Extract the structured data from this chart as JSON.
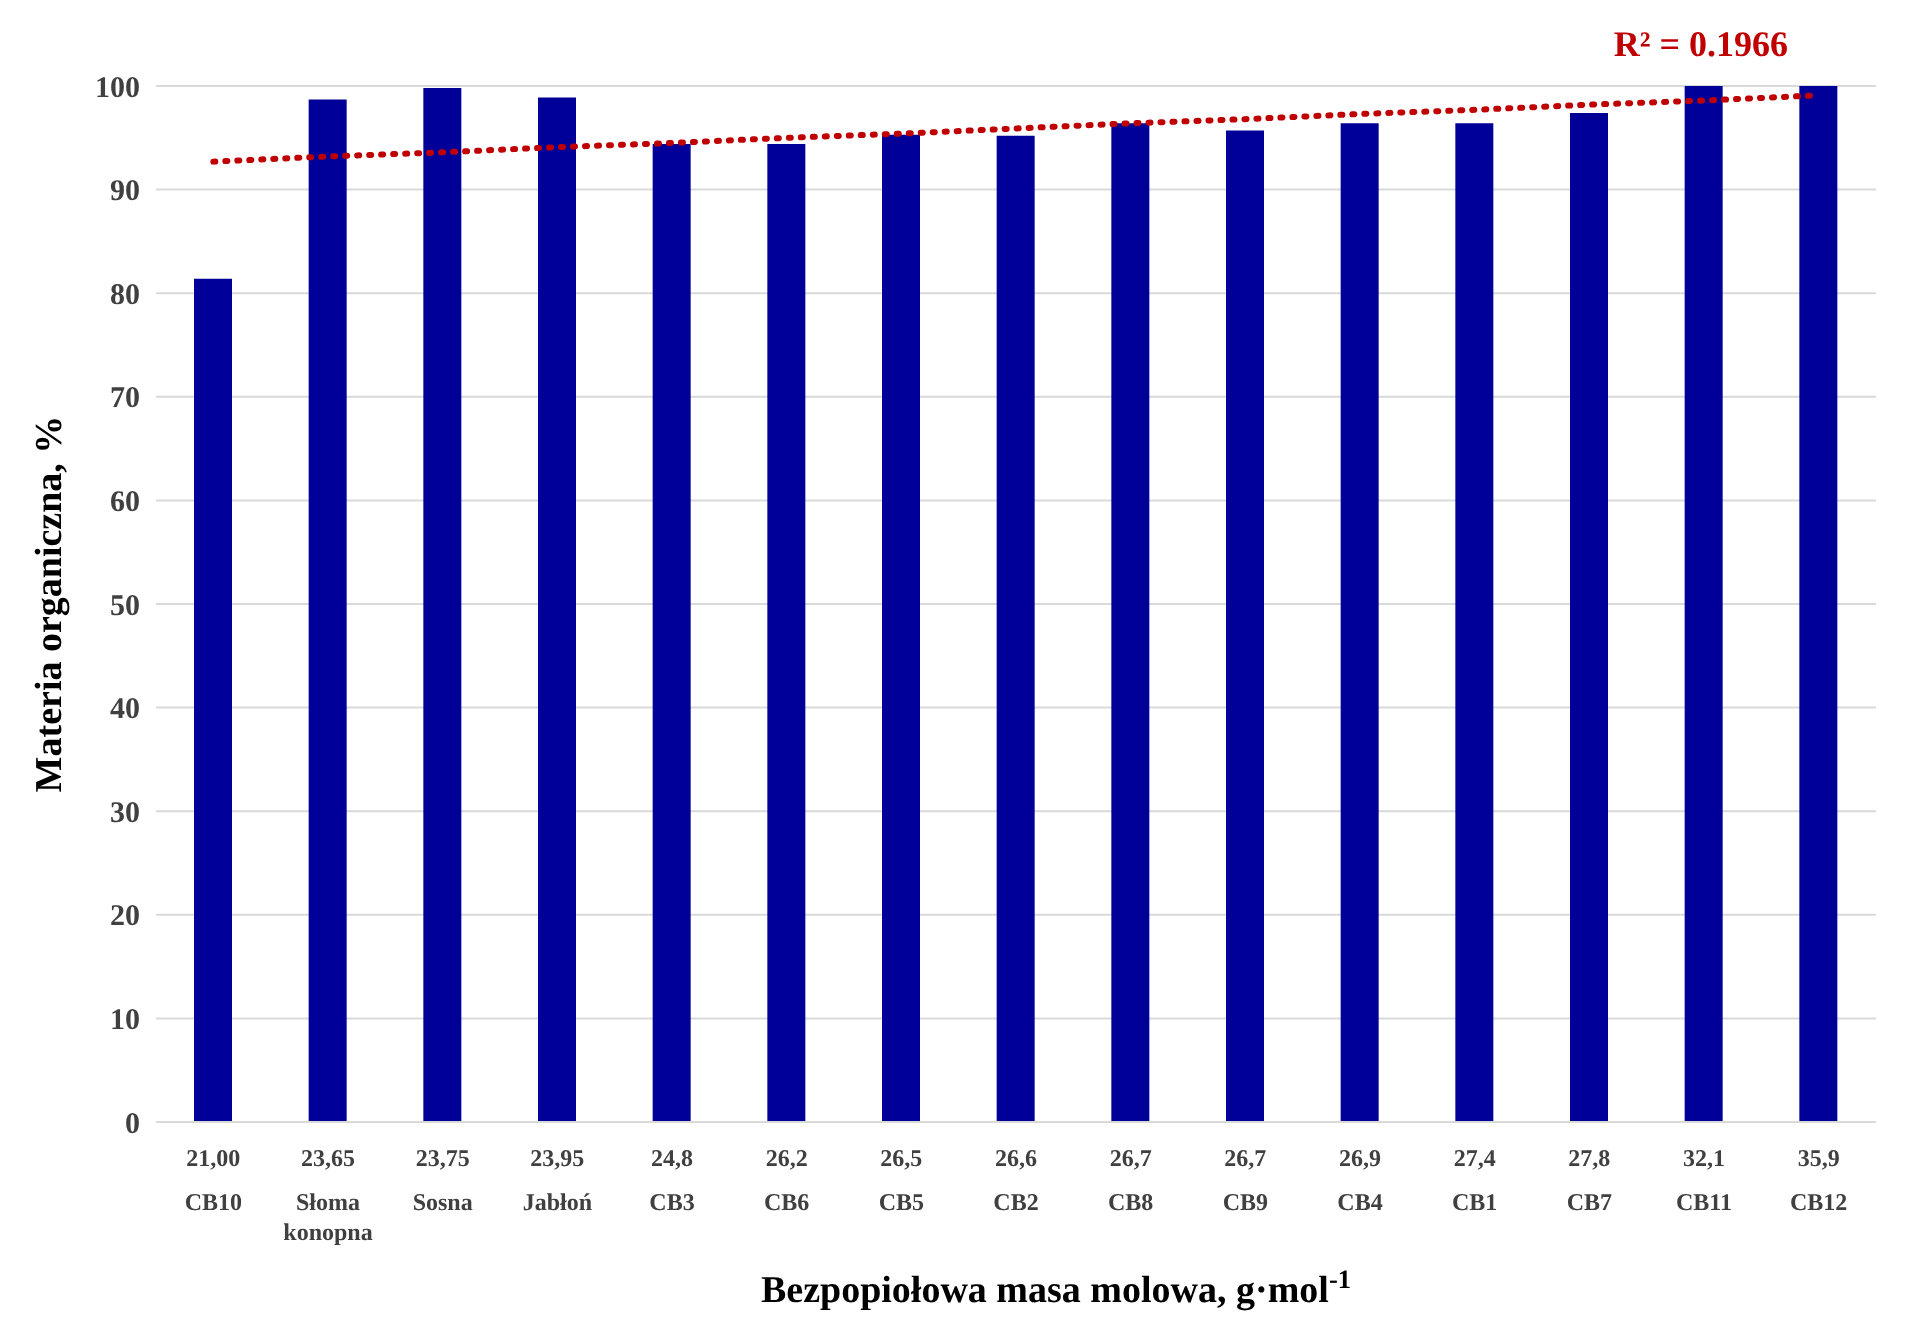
{
  "chart_data": {
    "type": "bar",
    "xlabel": "Bezpopiołowa masa molowa, g·mol$^{-1}$",
    "ylabel": "Materia organiczna, %",
    "categories": [
      "21,00\nCB10",
      "23,65\nSłoma\nkonopna",
      "23,75\nSosna",
      "23,95\nJabłoń",
      "24,8\nCB3",
      "26,2\nCB6",
      "26,5\nCB5",
      "26,6\nCB2",
      "26,7\nCB8",
      "26,7\nCB9",
      "26,9\nCB4",
      "27,4\nCB1",
      "27,8\nCB7",
      "32,1\nCB11",
      "35,9\nCB12"
    ],
    "series": [
      {
        "color": "#000099",
        "values": [
          81.4,
          98.7,
          99.8,
          98.9,
          94.4,
          94.4,
          95.3,
          95.2,
          96.4,
          95.7,
          96.4,
          96.4,
          97.4,
          100,
          100
        ]
      },
      {
        "type": "line",
        "color": "#c00000",
        "line_style": "dotted",
        "marker": "none",
        "values": [
          92.7,
          93.2,
          93.6,
          94.1,
          94.5,
          95.0,
          95.4,
          95.9,
          96.4,
          96.8,
          97.3,
          97.7,
          98.2,
          98.6,
          99.1
        ]
      }
    ],
    "ylim": [
      0,
      100
    ],
    "yticks": [
      0,
      10,
      20,
      30,
      40,
      50,
      60,
      70,
      80,
      90,
      100
    ],
    "grid": "y",
    "legend": false,
    "annotations": [
      "R² = 0.1966"
    ]
  }
}
